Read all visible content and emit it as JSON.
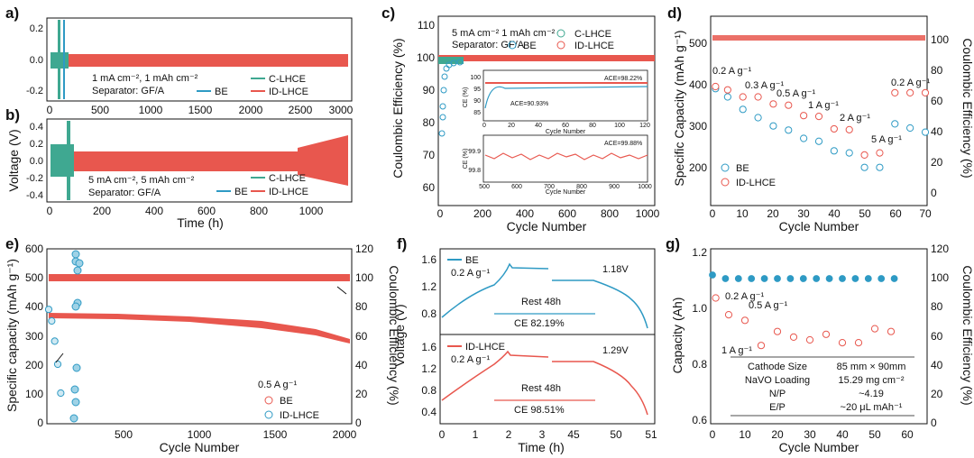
{
  "colors": {
    "be": "#2E9AC4",
    "id": "#E8574E",
    "c": "#3FA891"
  },
  "panels": {
    "a": {
      "label": "a)",
      "ylabel": "Voltage (V)",
      "yticks": [
        "0.2",
        "0.0",
        "-0.2"
      ],
      "xticks": [
        "0",
        "500",
        "1000",
        "1500",
        "2000",
        "2500",
        "3000"
      ],
      "text1": "1 mA cm⁻², 1 mAh cm⁻²",
      "text2": "Separator: GF/A",
      "legend": [
        "C-LHCE",
        "BE",
        "ID-LHCE"
      ]
    },
    "b": {
      "label": "b)",
      "ylabel": "Voltage (V)",
      "yticks": [
        "0.4",
        "0.2",
        "0.0",
        "-0.2",
        "-0.4"
      ],
      "xticks": [
        "0",
        "200",
        "400",
        "600",
        "800",
        "1000"
      ],
      "xlabel": "Time (h)",
      "text1": "5 mA cm⁻², 5 mAh cm⁻²",
      "text2": "Separator: GF/A",
      "legend": [
        "C-LHCE",
        "BE",
        "ID-LHCE"
      ]
    },
    "c": {
      "label": "c)",
      "ylabel": "Coulombic Efficiency (%)",
      "xlabel": "Cycle Number",
      "yticks": [
        "60",
        "70",
        "80",
        "90",
        "100",
        "110"
      ],
      "xticks": [
        "0",
        "200",
        "400",
        "600",
        "800",
        "1000"
      ],
      "text1": "5 mA cm⁻² 1 mAh cm⁻²",
      "text2": "Separator: GF/A",
      "legend": [
        "C-LHCE",
        "BE",
        "ID-LHCE"
      ],
      "inset1": {
        "ylabel": "CE (%)",
        "xlabel": "Cycle Number",
        "yticks": [
          "100",
          "95",
          "90",
          "85"
        ],
        "xticks": [
          "0",
          "20",
          "40",
          "60",
          "80",
          "100",
          "120"
        ],
        "ace1": "ACE=98.22%",
        "ace2": "ACE=90.93%"
      },
      "inset2": {
        "ylabel": "CE (%)",
        "xlabel": "Cycle Number",
        "yticks": [
          "99.9",
          "99.8"
        ],
        "xticks": [
          "500",
          "600",
          "700",
          "800",
          "900",
          "1000"
        ],
        "ace": "ACE=99.88%"
      }
    },
    "d": {
      "label": "d)",
      "ylabel": "Specific Capacity (mAh g⁻¹)",
      "y2label": "Coulombic Efficiency (%)",
      "xlabel": "Cycle Number",
      "yticks": [
        "500",
        "400",
        "300",
        "200"
      ],
      "y2ticks": [
        "100",
        "80",
        "60",
        "40",
        "20",
        "0"
      ],
      "xticks": [
        "0",
        "10",
        "20",
        "30",
        "40",
        "50",
        "60",
        "70"
      ],
      "rates": [
        "0.2 A g⁻¹",
        "0.3 A g⁻¹",
        "0.5 A g⁻¹",
        "1 A g⁻¹",
        "2 A g⁻¹",
        "5 A g⁻¹",
        "0.2 A g⁻¹"
      ],
      "legend": [
        "BE",
        "ID-LHCE"
      ]
    },
    "e": {
      "label": "e)",
      "ylabel": "Specific capacity (mAh g⁻¹)",
      "y2label": "Coulombic Efficiency (%)",
      "xlabel": "Cycle Number",
      "yticks": [
        "600",
        "500",
        "400",
        "300",
        "200",
        "100",
        "0"
      ],
      "y2ticks": [
        "120",
        "100",
        "80",
        "60",
        "40",
        "20",
        "0"
      ],
      "xticks": [
        "500",
        "1000",
        "1500",
        "2000"
      ],
      "rate": "0.5 A g⁻¹",
      "legend": [
        "BE",
        "ID-LHCE"
      ]
    },
    "f": {
      "label": "f)",
      "ylabel": "Voltage (V)",
      "xlabel": "Time (h)",
      "xticks": [
        "0",
        "1",
        "2",
        "3",
        "45",
        "50",
        "51"
      ],
      "top": {
        "name": "BE",
        "rate": "0.2 A g⁻¹",
        "v": "1.18V",
        "rest": "Rest 48h",
        "ce": "CE 82.19%",
        "yticks": [
          "1.6",
          "1.2",
          "0.8"
        ]
      },
      "bottom": {
        "name": "ID-LHCE",
        "rate": "0.2 A g⁻¹",
        "v": "1.29V",
        "rest": "Rest 48h",
        "ce": "CE 98.51%",
        "yticks": [
          "1.6",
          "1.2",
          "0.8",
          "0.4"
        ]
      }
    },
    "g": {
      "label": "g)",
      "ylabel": "Capacity (Ah)",
      "y2label": "Coulombic Efficiency (%)",
      "xlabel": "Cycle Number",
      "yticks": [
        "1.2",
        "1.0",
        "0.8",
        "0.6"
      ],
      "y2ticks": [
        "120",
        "100",
        "80",
        "60",
        "40",
        "20",
        "0"
      ],
      "xticks": [
        "0",
        "10",
        "20",
        "30",
        "40",
        "50",
        "60"
      ],
      "rates": [
        "0.2 A g⁻¹",
        "0.5 A g⁻¹",
        "1 A g⁻¹"
      ],
      "table": [
        [
          "Cathode Size",
          "85 mm × 90mm"
        ],
        [
          "NaVO Loading",
          "15.29 mg cm⁻²"
        ],
        [
          "N/P",
          "~4.19"
        ],
        [
          "E/P",
          "~20 μL mAh⁻¹"
        ]
      ]
    }
  },
  "chart_data": [
    {
      "type": "line",
      "panel": "d",
      "ylim": [
        150,
        520
      ],
      "y2lim": [
        0,
        110
      ],
      "xlim": [
        0,
        70
      ],
      "series": [
        {
          "name": "BE",
          "x": [
            1,
            5,
            10,
            15,
            20,
            25,
            30,
            35,
            40,
            45,
            50,
            55,
            60,
            65,
            70
          ],
          "values": [
            395,
            375,
            345,
            325,
            305,
            295,
            275,
            268,
            245,
            240,
            205,
            205,
            310,
            300,
            290
          ]
        },
        {
          "name": "ID-LHCE",
          "x": [
            1,
            5,
            10,
            15,
            20,
            25,
            30,
            35,
            40,
            45,
            50,
            55,
            60,
            65,
            70
          ],
          "values": [
            400,
            392,
            375,
            375,
            358,
            355,
            330,
            328,
            298,
            296,
            235,
            240,
            385,
            385,
            385
          ]
        }
      ]
    },
    {
      "type": "line",
      "panel": "e",
      "ylim": [
        0,
        600
      ],
      "y2lim": [
        0,
        120
      ],
      "xlim": [
        0,
        2000
      ],
      "series": [
        {
          "name": "ID-LHCE",
          "x": [
            0,
            250,
            500,
            750,
            1000,
            1250,
            1500,
            1750,
            2000
          ],
          "values": [
            355,
            350,
            345,
            340,
            335,
            325,
            310,
            295,
            275
          ]
        },
        {
          "name": "BE",
          "x": [
            0,
            20,
            40,
            60,
            80
          ],
          "values": [
            390,
            350,
            280,
            200,
            100
          ]
        }
      ]
    },
    {
      "type": "line",
      "panel": "c",
      "ylim": [
        60,
        110
      ],
      "xlim": [
        0,
        1000
      ],
      "series": [
        {
          "name": "ID-LHCE",
          "x": [
            0,
            200,
            400,
            600,
            800,
            1000
          ],
          "values": [
            99.8,
            99.9,
            99.9,
            99.9,
            99.9,
            99.9
          ]
        }
      ]
    },
    {
      "type": "line",
      "panel": "g",
      "ylim": [
        0.6,
        1.25
      ],
      "y2lim": [
        0,
        120
      ],
      "xlim": [
        0,
        60
      ],
      "series": [
        {
          "name": "Capacity",
          "x": [
            1,
            5,
            10,
            15,
            20,
            25,
            30,
            35,
            40,
            45,
            50,
            55
          ],
          "values": [
            1.05,
            0.99,
            0.97,
            0.88,
            0.93,
            0.91,
            0.9,
            0.92,
            0.89,
            0.89,
            0.94,
            0.93
          ]
        }
      ]
    }
  ]
}
